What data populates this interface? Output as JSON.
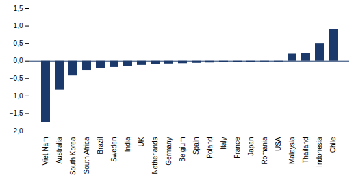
{
  "chart_data": {
    "type": "bar",
    "categories": [
      "Viet Nam",
      "Australia",
      "South Korea",
      "South Africa",
      "Brazil",
      "Sweden",
      "India",
      "UK",
      "Netherlands",
      "Germany",
      "Belgium",
      "Spain",
      "Poland",
      "Italy",
      "France",
      "Japan",
      "Romania",
      "USA",
      "Malaysia",
      "Thailand",
      "Indonesia",
      "Chile"
    ],
    "values": [
      -1.75,
      -0.82,
      -0.42,
      -0.28,
      -0.22,
      -0.18,
      -0.15,
      -0.12,
      -0.1,
      -0.08,
      -0.07,
      -0.06,
      -0.05,
      -0.04,
      -0.04,
      -0.03,
      -0.02,
      -0.02,
      0.2,
      0.22,
      0.5,
      0.9
    ],
    "color": "#1b3a6b",
    "ylim": [
      -2.0,
      1.5
    ],
    "yticks": [
      {
        "value": -2.0,
        "label": "−2,0"
      },
      {
        "value": -1.5,
        "label": "−1,5"
      },
      {
        "value": -1.0,
        "label": "−1,0"
      },
      {
        "value": -0.5,
        "label": "−0,5"
      },
      {
        "value": 0.0,
        "label": "0,0"
      },
      {
        "value": 0.5,
        "label": "0,5"
      },
      {
        "value": 1.0,
        "label": "1,0"
      },
      {
        "value": 1.5,
        "label": "1,5"
      }
    ],
    "grid": false
  }
}
